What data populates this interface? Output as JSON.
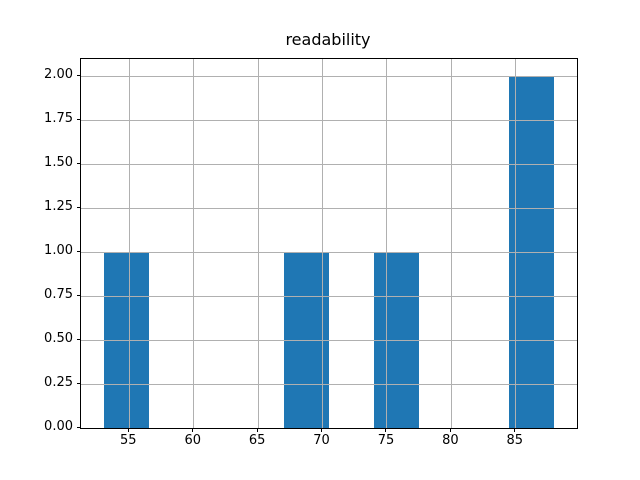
{
  "figure": {
    "background": "#ffffff"
  },
  "chart_data": {
    "type": "bar",
    "subtype": "histogram",
    "title": "readability",
    "xlabel": "",
    "ylabel": "",
    "xlim": [
      51.25,
      89.75
    ],
    "ylim": [
      0,
      2.1
    ],
    "grid": true,
    "grid_above_bars": true,
    "legend": null,
    "bar_color": "#1f77b4",
    "grid_color": "#b0b0b0",
    "spine_color": "#000000",
    "text_color": "#000000",
    "bins": [
      {
        "x0": 53.0,
        "x1": 56.5,
        "count": 1
      },
      {
        "x0": 67.0,
        "x1": 70.5,
        "count": 1
      },
      {
        "x0": 74.0,
        "x1": 77.5,
        "count": 1
      },
      {
        "x0": 84.5,
        "x1": 88.0,
        "count": 2
      }
    ],
    "xticks": [
      {
        "value": 55,
        "label": "55"
      },
      {
        "value": 60,
        "label": "60"
      },
      {
        "value": 65,
        "label": "65"
      },
      {
        "value": 70,
        "label": "70"
      },
      {
        "value": 75,
        "label": "75"
      },
      {
        "value": 80,
        "label": "80"
      },
      {
        "value": 85,
        "label": "85"
      }
    ],
    "yticks": [
      {
        "value": 0.0,
        "label": "0.00"
      },
      {
        "value": 0.25,
        "label": "0.25"
      },
      {
        "value": 0.5,
        "label": "0.50"
      },
      {
        "value": 0.75,
        "label": "0.75"
      },
      {
        "value": 1.0,
        "label": "1.00"
      },
      {
        "value": 1.25,
        "label": "1.25"
      },
      {
        "value": 1.5,
        "label": "1.50"
      },
      {
        "value": 1.75,
        "label": "1.75"
      },
      {
        "value": 2.0,
        "label": "2.00"
      }
    ]
  }
}
